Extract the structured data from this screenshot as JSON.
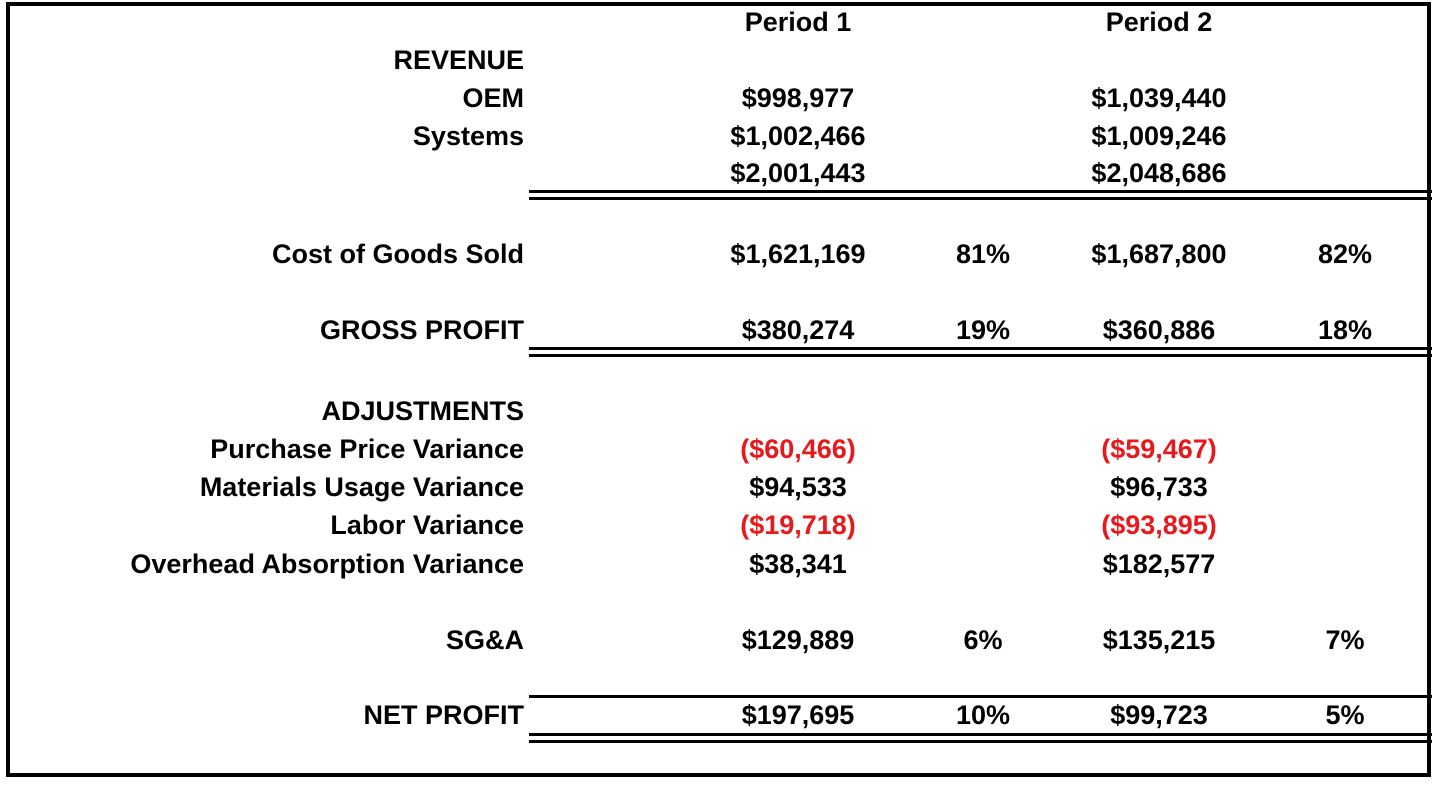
{
  "headers": {
    "period1": "Period 1",
    "period2": "Period 2"
  },
  "revenue": {
    "section_label": "REVENUE",
    "oem": {
      "label": "OEM",
      "p1": "$998,977",
      "p2": "$1,039,440"
    },
    "systems": {
      "label": "Systems",
      "p1": "$1,002,466",
      "p2": "$1,009,246"
    },
    "total": {
      "p1": "$2,001,443",
      "p2": "$2,048,686"
    }
  },
  "cogs": {
    "label": "Cost of Goods Sold",
    "p1": "$1,621,169",
    "p1_pct": "81%",
    "p2": "$1,687,800",
    "p2_pct": "82%"
  },
  "gross_profit": {
    "label": "GROSS PROFIT",
    "p1": "$380,274",
    "p1_pct": "19%",
    "p2": "$360,886",
    "p2_pct": "18%"
  },
  "adjustments": {
    "section_label": "ADJUSTMENTS",
    "ppv": {
      "label": "Purchase Price Variance",
      "p1": "($60,466)",
      "p2": "($59,467)"
    },
    "muv": {
      "label": "Materials Usage Variance",
      "p1": "$94,533",
      "p2": "$96,733"
    },
    "labor": {
      "label": "Labor Variance",
      "p1": "($19,718)",
      "p2": "($93,895)"
    },
    "overhead": {
      "label": "Overhead Absorption Variance",
      "p1": "$38,341",
      "p2": "$182,577"
    }
  },
  "sga": {
    "label": "SG&A",
    "p1": "$129,889",
    "p1_pct": "6%",
    "p2": "$135,215",
    "p2_pct": "7%"
  },
  "net_profit": {
    "label": "NET PROFIT",
    "p1": "$197,695",
    "p1_pct": "10%",
    "p2": "$99,723",
    "p2_pct": "5%"
  },
  "colors": {
    "negative": "#e8191c",
    "text": "#000000",
    "border": "#000000"
  }
}
